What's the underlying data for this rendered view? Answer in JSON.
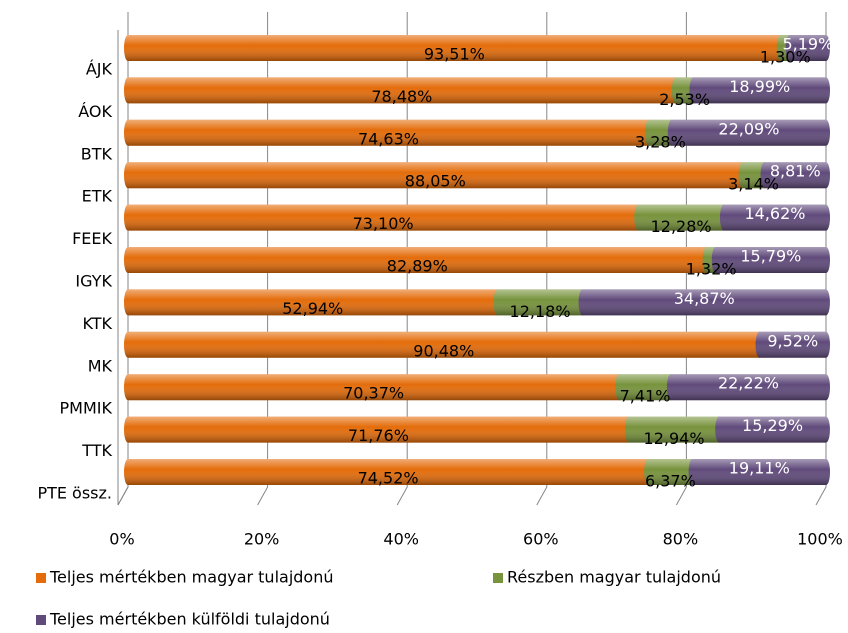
{
  "chart_data": {
    "type": "bar",
    "orientation": "horizontal",
    "stacked": true,
    "legend": "bottom",
    "grid": true,
    "categories": [
      "ÁJK",
      "ÁOK",
      "BTK",
      "ETK",
      "FEEK",
      "IGYK",
      "KTK",
      "MK",
      "PMMIK",
      "TTK",
      "PTE össz."
    ],
    "series": [
      {
        "name": "Teljes mértékben magyar tulajdonú",
        "color": "#E46C0A",
        "values": [
          93.51,
          78.48,
          74.63,
          88.05,
          73.1,
          82.89,
          52.94,
          90.48,
          70.37,
          71.76,
          74.52
        ],
        "value_labels": [
          "93,51%",
          "78,48%",
          "74,63%",
          "88,05%",
          "73,10%",
          "82,89%",
          "52,94%",
          "90,48%",
          "70,37%",
          "71,76%",
          "74,52%"
        ]
      },
      {
        "name": "Részben magyar tulajdonú",
        "color": "#77933C",
        "values": [
          1.3,
          2.53,
          3.28,
          3.14,
          12.28,
          1.32,
          12.18,
          null,
          7.41,
          12.94,
          6.37
        ],
        "value_labels": [
          "1,30%",
          "2,53%",
          "3,28%",
          "3,14%",
          "12,28%",
          "1,32%",
          "12,18%",
          null,
          "7,41%",
          "12,94%",
          "6,37%"
        ]
      },
      {
        "name": "Teljes mértékben külföldi tulajdonú",
        "color": "#604A7B",
        "values": [
          5.19,
          18.99,
          22.09,
          8.81,
          14.62,
          15.79,
          34.87,
          9.52,
          22.22,
          15.29,
          19.11
        ],
        "value_labels": [
          "5,19%",
          "18,99%",
          "22,09%",
          "8,81%",
          "14,62%",
          "15,79%",
          "34,87%",
          "9,52%",
          "22,22%",
          "15,29%",
          "19,11%"
        ]
      }
    ],
    "xlim": [
      0,
      100
    ],
    "xticks": [
      {
        "value": 0,
        "label": "0%"
      },
      {
        "value": 20,
        "label": "20%"
      },
      {
        "value": 40,
        "label": "40%"
      },
      {
        "value": 60,
        "label": "60%"
      },
      {
        "value": 80,
        "label": "80%"
      },
      {
        "value": 100,
        "label": "100%"
      }
    ]
  }
}
